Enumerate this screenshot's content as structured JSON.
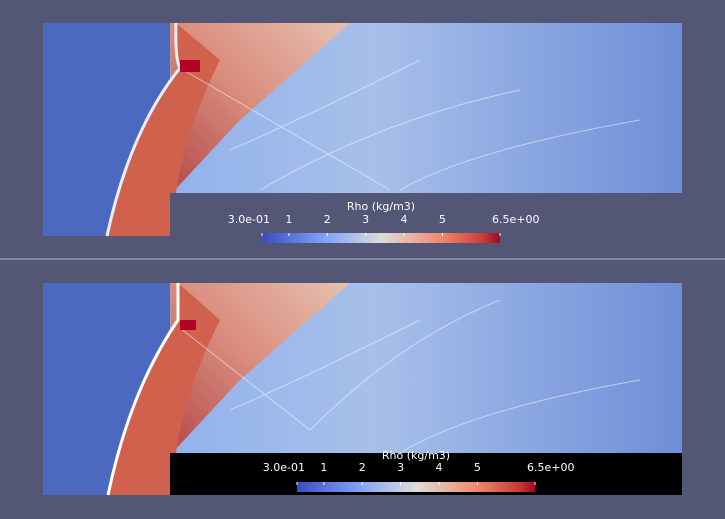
{
  "panels": [
    {
      "colorbar": {
        "title": "Rho (kg/m3)",
        "range": [
          0.3,
          6.5
        ],
        "ticks": [
          {
            "value": 0.3,
            "label": "3.0e-01"
          },
          1,
          2,
          3,
          4,
          5,
          {
            "value": 6.5,
            "label": "6.5e+00"
          }
        ]
      }
    },
    {
      "colorbar": {
        "title": "Rho (kg/m3)",
        "range": [
          0.3,
          6.5
        ],
        "ticks": [
          {
            "value": 0.3,
            "label": "3.0e-01"
          },
          1,
          2,
          3,
          4,
          5,
          {
            "value": 6.5,
            "label": "6.5e+00"
          }
        ]
      }
    }
  ]
}
